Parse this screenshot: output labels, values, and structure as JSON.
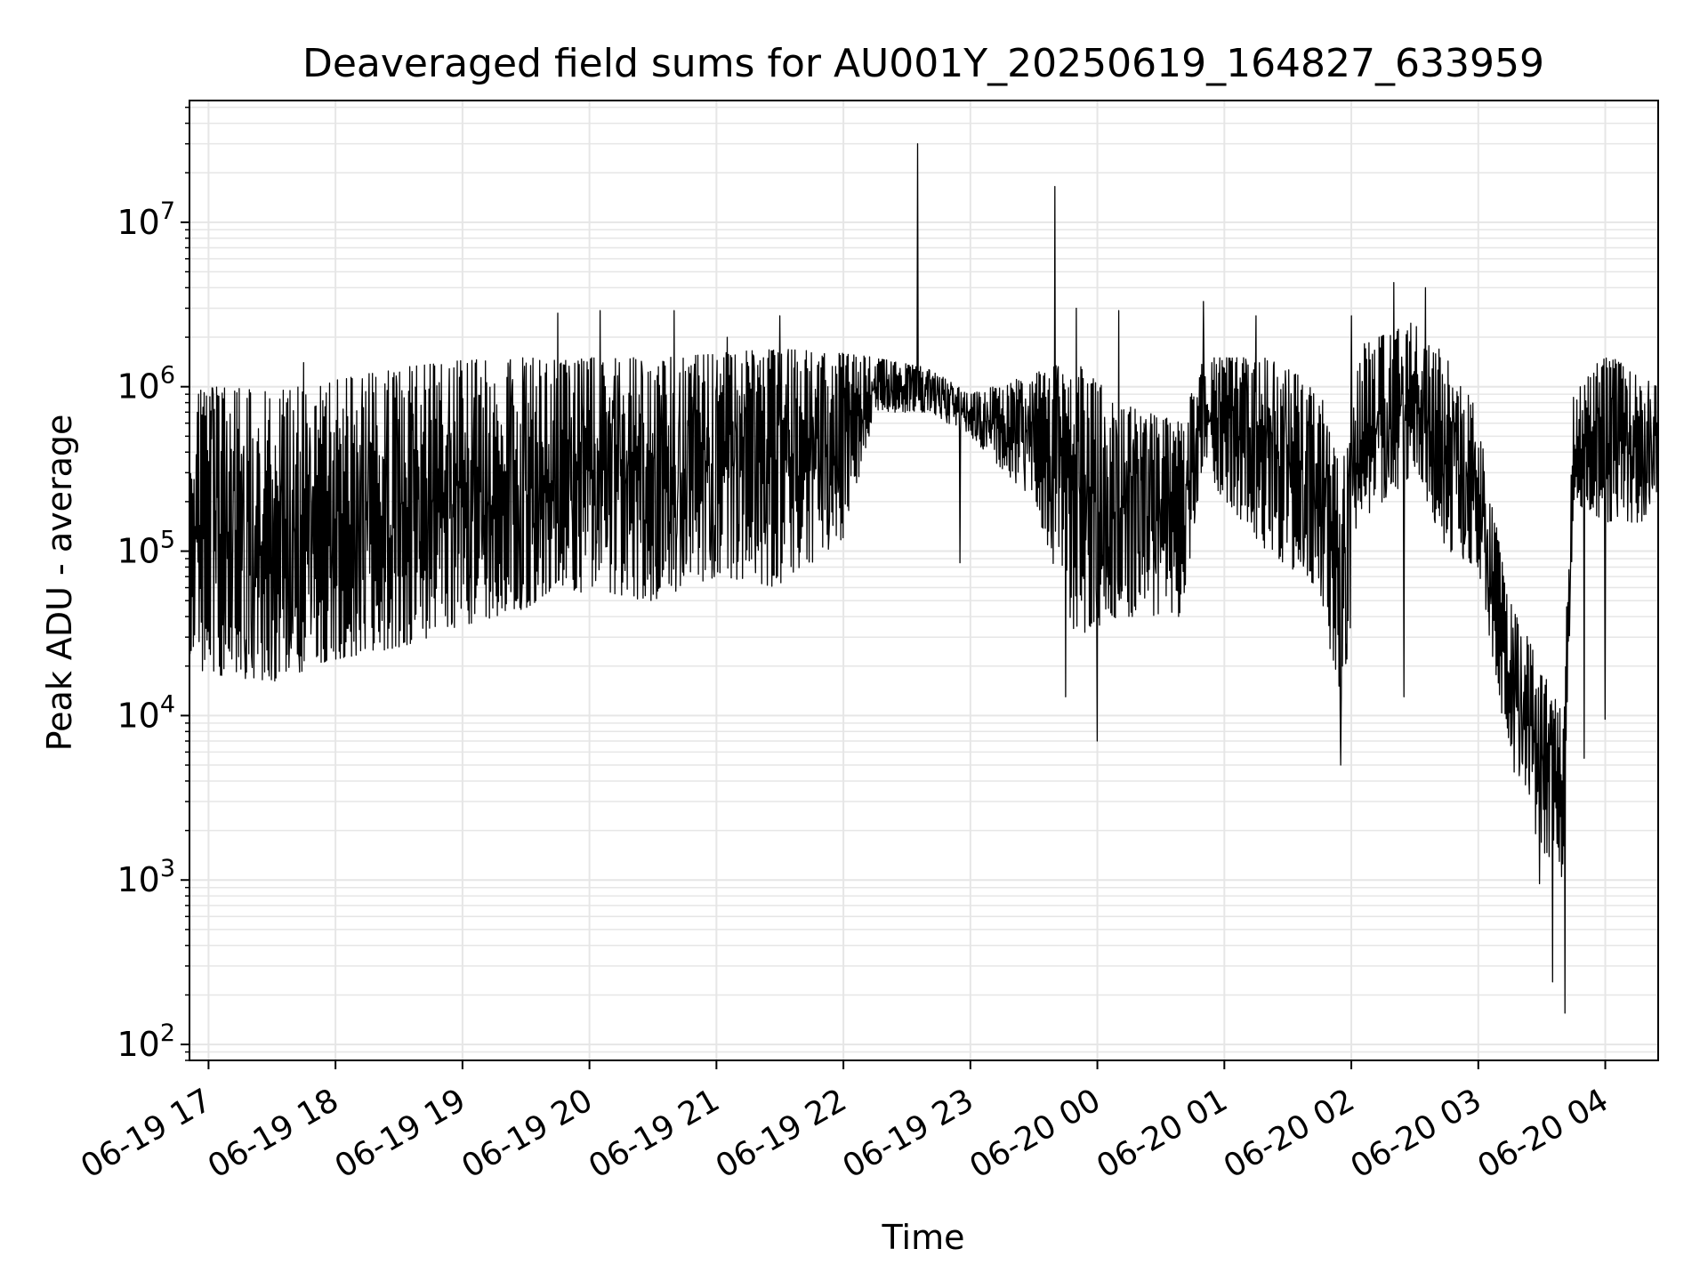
{
  "chart_data": {
    "type": "line",
    "title": "Deaveraged field sums for AU001Y_20250619_164827_633959",
    "xlabel": "Time",
    "ylabel": "Peak ADU - average",
    "x_type": "datetime",
    "xlim": [
      "2025-06-19 16:51",
      "2025-06-20 04:25"
    ],
    "x_ticks": [
      "06-19 17",
      "06-19 18",
      "06-19 19",
      "06-19 20",
      "06-19 21",
      "06-19 22",
      "06-19 23",
      "06-20 00",
      "06-20 01",
      "06-20 02",
      "06-20 03",
      "06-20 04"
    ],
    "y_scale": "log",
    "ylim": [
      80,
      55000000
    ],
    "y_ticks": [
      {
        "base": "10",
        "exp": "2",
        "value": 100
      },
      {
        "base": "10",
        "exp": "3",
        "value": 1000
      },
      {
        "base": "10",
        "exp": "4",
        "value": 10000
      },
      {
        "base": "10",
        "exp": "5",
        "value": 100000
      },
      {
        "base": "10",
        "exp": "6",
        "value": 1000000
      },
      {
        "base": "10",
        "exp": "7",
        "value": 10000000
      }
    ],
    "grid": true,
    "line_color": "#000000",
    "envelope": [
      {
        "x": "2025-06-19 16:51",
        "low": 20000,
        "high": 900000
      },
      {
        "x": "2025-06-19 17:00",
        "low": 18000,
        "high": 1000000
      },
      {
        "x": "2025-06-19 17:30",
        "low": 16000,
        "high": 950000
      },
      {
        "x": "2025-06-19 18:00",
        "low": 22000,
        "high": 1100000
      },
      {
        "x": "2025-06-19 18:30",
        "low": 26000,
        "high": 1300000
      },
      {
        "x": "2025-06-19 19:00",
        "low": 35000,
        "high": 1450000
      },
      {
        "x": "2025-06-19 19:30",
        "low": 45000,
        "high": 1500000
      },
      {
        "x": "2025-06-19 19:45",
        "low": 60000,
        "high": 1450000
      },
      {
        "x": "2025-06-19 20:00",
        "low": 55000,
        "high": 1500000
      },
      {
        "x": "2025-06-19 20:30",
        "low": 50000,
        "high": 1500000
      },
      {
        "x": "2025-06-19 21:00",
        "low": 70000,
        "high": 1600000
      },
      {
        "x": "2025-06-19 21:30",
        "low": 60000,
        "high": 1700000
      },
      {
        "x": "2025-06-19 22:00",
        "low": 120000,
        "high": 1600000
      },
      {
        "x": "2025-06-19 22:15",
        "low": 700000,
        "high": 1500000
      },
      {
        "x": "2025-06-19 22:40",
        "low": 700000,
        "high": 1300000
      },
      {
        "x": "2025-06-19 23:00",
        "low": 500000,
        "high": 900000
      },
      {
        "x": "2025-06-19 23:30",
        "low": 200000,
        "high": 1200000
      },
      {
        "x": "2025-06-19 23:50",
        "low": 30000,
        "high": 1500000
      },
      {
        "x": "2025-06-20 00:10",
        "low": 40000,
        "high": 800000
      },
      {
        "x": "2025-06-20 00:40",
        "low": 40000,
        "high": 600000
      },
      {
        "x": "2025-06-20 00:50",
        "low": 300000,
        "high": 1500000
      },
      {
        "x": "2025-06-20 01:20",
        "low": 100000,
        "high": 1500000
      },
      {
        "x": "2025-06-20 01:45",
        "low": 60000,
        "high": 1000000
      },
      {
        "x": "2025-06-20 01:55",
        "low": 10000,
        "high": 300000
      },
      {
        "x": "2025-06-20 02:05",
        "low": 150000,
        "high": 1800000
      },
      {
        "x": "2025-06-20 02:30",
        "low": 300000,
        "high": 2500000
      },
      {
        "x": "2025-06-20 02:45",
        "low": 100000,
        "high": 1500000
      },
      {
        "x": "2025-06-20 03:00",
        "low": 80000,
        "high": 700000
      },
      {
        "x": "2025-06-20 03:15",
        "low": 5000,
        "high": 50000
      },
      {
        "x": "2025-06-20 03:30",
        "low": 1500,
        "high": 20000
      },
      {
        "x": "2025-06-20 03:40",
        "low": 1000,
        "high": 10000
      },
      {
        "x": "2025-06-20 03:45",
        "low": 200000,
        "high": 900000
      },
      {
        "x": "2025-06-20 04:00",
        "low": 150000,
        "high": 1600000
      },
      {
        "x": "2025-06-20 04:25",
        "low": 150000,
        "high": 1000000
      }
    ],
    "spikes": [
      {
        "x": "2025-06-19 17:45",
        "value": 1400000
      },
      {
        "x": "2025-06-19 19:45",
        "value": 2800000
      },
      {
        "x": "2025-06-19 20:05",
        "value": 2900000
      },
      {
        "x": "2025-06-19 20:40",
        "value": 2900000
      },
      {
        "x": "2025-06-19 21:05",
        "value": 2000000
      },
      {
        "x": "2025-06-19 21:30",
        "value": 2700000
      },
      {
        "x": "2025-06-19 22:35",
        "value": 30000000
      },
      {
        "x": "2025-06-19 23:40",
        "value": 16500000
      },
      {
        "x": "2025-06-19 23:50",
        "value": 3000000
      },
      {
        "x": "2025-06-20 00:10",
        "value": 2900000
      },
      {
        "x": "2025-06-20 00:50",
        "value": 3300000
      },
      {
        "x": "2025-06-20 01:15",
        "value": 2700000
      },
      {
        "x": "2025-06-20 02:00",
        "value": 2700000
      },
      {
        "x": "2025-06-20 02:20",
        "value": 4300000
      },
      {
        "x": "2025-06-20 02:35",
        "value": 4000000
      },
      {
        "x": "2025-06-20 02:25",
        "value": 13000
      },
      {
        "x": "2025-06-19 22:55",
        "value": 85000
      },
      {
        "x": "2025-06-19 23:45",
        "value": 13000
      },
      {
        "x": "2025-06-20 00:00",
        "value": 7000
      },
      {
        "x": "2025-06-20 01:55",
        "value": 5000
      },
      {
        "x": "2025-06-20 03:35",
        "value": 240
      },
      {
        "x": "2025-06-20 03:41",
        "value": 155
      },
      {
        "x": "2025-06-20 03:29",
        "value": 950
      },
      {
        "x": "2025-06-20 03:50",
        "value": 5500
      },
      {
        "x": "2025-06-20 04:00",
        "value": 9500
      }
    ]
  }
}
